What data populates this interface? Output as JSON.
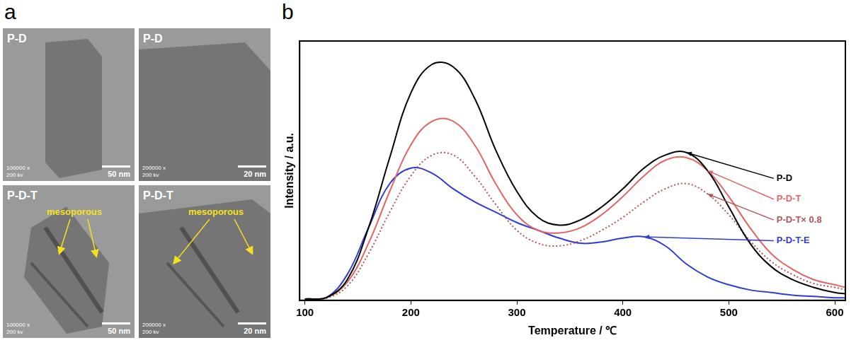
{
  "panel_a": {
    "letter": "a",
    "images": [
      {
        "label": "P-D",
        "magnification": "100000 x",
        "voltage": "200 kv",
        "scale_bar": "50 nm"
      },
      {
        "label": "P-D",
        "magnification": "200000 x",
        "voltage": "200 kv",
        "scale_bar": "20 nm"
      },
      {
        "label": "P-D-T",
        "magnification": "100000 x",
        "voltage": "200 kv",
        "scale_bar": "50 nm",
        "annotation": "mesoporous"
      },
      {
        "label": "P-D-T",
        "magnification": "200000 x",
        "voltage": "200 kv",
        "scale_bar": "20 nm",
        "annotation": "mesoporous"
      }
    ]
  },
  "chart_data": {
    "type": "line",
    "panel_letter": "b",
    "x_label": "Temperature / ℃",
    "y_label": "Intensity / a.u.",
    "x": [
      100,
      120,
      140,
      160,
      180,
      200,
      220,
      240,
      260,
      280,
      300,
      320,
      340,
      360,
      380,
      400,
      420,
      440,
      460,
      480,
      500,
      520,
      540,
      560,
      580,
      600,
      610
    ],
    "series": [
      {
        "name": "P-D",
        "color": "#000000",
        "line_style": "solid",
        "values": [
          0.5,
          1,
          8,
          28,
          55,
          80,
          91,
          90,
          78,
          58,
          42,
          32,
          29,
          31,
          36,
          43,
          51,
          56,
          57,
          50,
          36,
          22,
          13,
          8,
          5,
          3,
          2.5
        ]
      },
      {
        "name": "P-D-T",
        "color": "#e06666",
        "line_style": "solid",
        "values": [
          0.5,
          1,
          7,
          22,
          42,
          60,
          69,
          69,
          60,
          45,
          33,
          27,
          26,
          28,
          33,
          40,
          48,
          54,
          55,
          50,
          40,
          28,
          18,
          12,
          8,
          6,
          5
        ]
      },
      {
        "name": "P-D-T× 0.8",
        "color": "#b05555",
        "line_style": "dotted",
        "values": [
          0.4,
          0.8,
          5.5,
          18,
          34,
          48,
          56,
          56,
          48,
          37,
          27,
          22,
          21,
          23,
          27,
          32,
          38,
          43,
          45,
          41,
          33,
          23,
          15,
          10,
          6.5,
          5,
          4
        ]
      },
      {
        "name": "P-D-T-E",
        "color": "#2e3bd6",
        "line_style": "solid",
        "values": [
          0.5,
          1,
          10,
          28,
          45,
          51,
          49,
          43,
          38,
          34,
          30,
          27,
          24,
          22,
          22.5,
          24,
          24.5,
          21,
          14,
          9,
          6,
          4,
          3,
          2,
          1.5,
          1,
          1
        ]
      }
    ],
    "xlim": [
      95,
      610
    ],
    "xticks": [
      100,
      200,
      300,
      400,
      500,
      600
    ],
    "ylim": [
      0,
      100
    ],
    "tick_labels": "x",
    "grid": false,
    "legend": "right"
  }
}
